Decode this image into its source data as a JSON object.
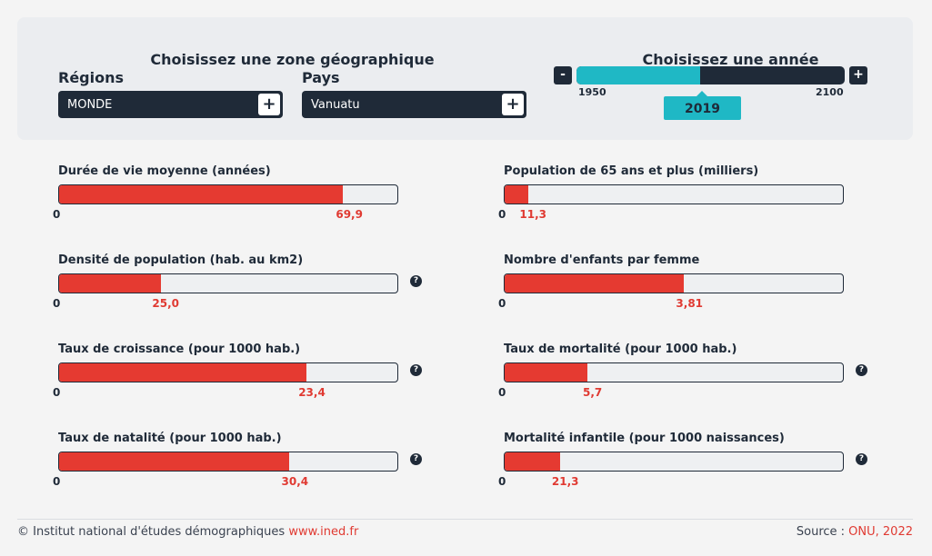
{
  "selector": {
    "zone_title": "Choisissez une zone géographique",
    "year_title": "Choisissez une année",
    "regions_label": "Régions",
    "regions_value": "MONDE",
    "pays_label": "Pays",
    "pays_value": "Vanuatu",
    "plus_symbol": "+"
  },
  "slider": {
    "minus_symbol": "-",
    "plus_symbol": "+",
    "min_label": "1950",
    "max_label": "2100",
    "min": 1950,
    "max": 2100,
    "value": 2019,
    "value_label": "2019"
  },
  "indicators": [
    {
      "title": "Durée de vie moyenne (années)",
      "zero": "0",
      "value_label": "69,9",
      "fraction": 0.84,
      "help": false
    },
    {
      "title": "Population de 65 ans et plus (milliers)",
      "zero": "0",
      "value_label": "11,3",
      "fraction": 0.07,
      "help": false
    },
    {
      "title": "Densité de population (hab. au km2)",
      "zero": "0",
      "value_label": "25,0",
      "fraction": 0.3,
      "help": true
    },
    {
      "title": "Nombre d'enfants par femme",
      "zero": "0",
      "value_label": "3,81",
      "fraction": 0.53,
      "help": false
    },
    {
      "title": "Taux de croissance (pour 1000 hab.)",
      "zero": "0",
      "value_label": "23,4",
      "fraction": 0.73,
      "help": true
    },
    {
      "title": "Taux de mortalité (pour 1000 hab.)",
      "zero": "0",
      "value_label": "5,7",
      "fraction": 0.245,
      "help": true
    },
    {
      "title": "Taux de natalité (pour 1000 hab.)",
      "zero": "0",
      "value_label": "30,4",
      "fraction": 0.68,
      "help": true
    },
    {
      "title": "Mortalité infantile (pour 1000 naissances)",
      "zero": "0",
      "value_label": "21,3",
      "fraction": 0.165,
      "help": true
    }
  ],
  "help_symbol": "?",
  "footer": {
    "copyright": "© Institut national d'études démographiques ",
    "site_link": "www.ined.fr",
    "source_prefix": "Source : ",
    "source_link": "ONU, 2022"
  },
  "colors": {
    "accent_red": "#e53a31",
    "teal": "#1fb8c5",
    "navy": "#1f2a38"
  }
}
